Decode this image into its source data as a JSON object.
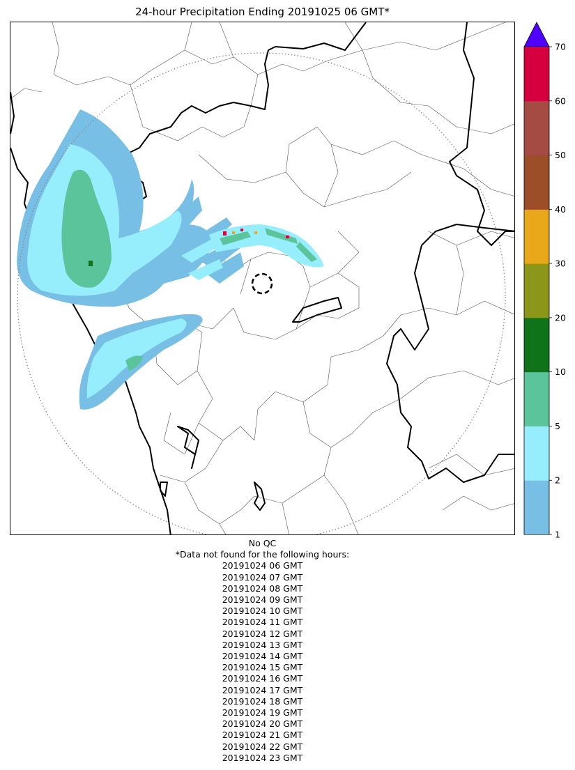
{
  "title": "24-hour Precipitation Ending 20191025 06 GMT*",
  "colorbar": {
    "levels": [
      "1",
      "2",
      "5",
      "10",
      "20",
      "30",
      "40",
      "50",
      "60",
      "70"
    ],
    "colors": [
      "#78bfe5",
      "#96eefc",
      "#5bc49a",
      "#0e7319",
      "#8c9719",
      "#e8a819",
      "#9b4e27",
      "#a64b43",
      "#d6003f"
    ],
    "extend_color": "#5000ff"
  },
  "map_colors": {
    "range_ring": "#888888",
    "radar_marker": "#000000",
    "light": "#78bfe5",
    "moderate": "#96eefc",
    "heavy": "#5bc49a",
    "very_heavy": "#0e7319",
    "intense": "#d6003f",
    "orange": "#e8a819"
  },
  "footer": {
    "qc": "No QC",
    "note": "*Data not found for the following hours:",
    "hours": [
      "20191024 06 GMT",
      "20191024 07 GMT",
      "20191024 08 GMT",
      "20191024 09 GMT",
      "20191024 10 GMT",
      "20191024 11 GMT",
      "20191024 12 GMT",
      "20191024 13 GMT",
      "20191024 14 GMT",
      "20191024 15 GMT",
      "20191024 16 GMT",
      "20191024 17 GMT",
      "20191024 18 GMT",
      "20191024 19 GMT",
      "20191024 20 GMT",
      "20191024 21 GMT",
      "20191024 22 GMT",
      "20191024 23 GMT"
    ]
  }
}
